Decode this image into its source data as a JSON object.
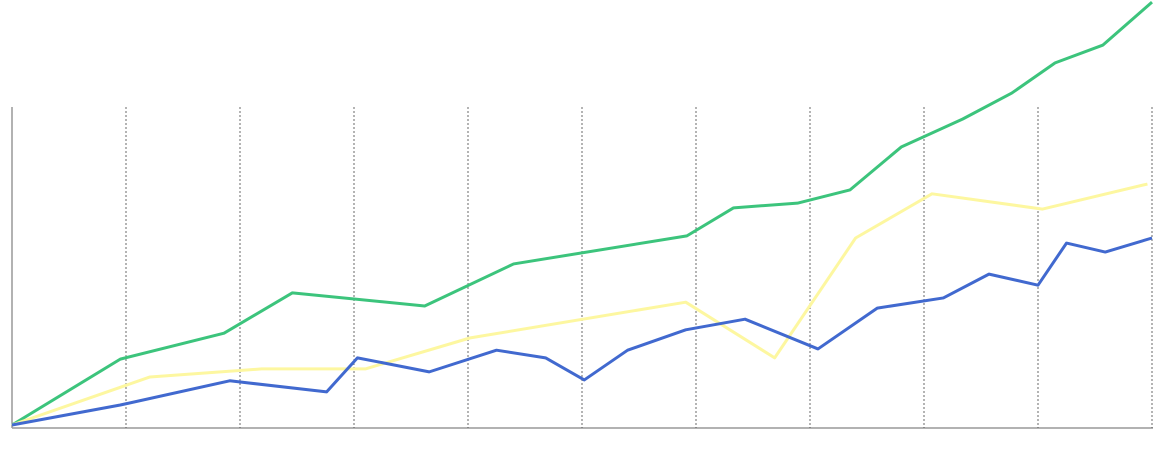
{
  "chart_data": {
    "type": "line",
    "xlim": [
      0,
      10
    ],
    "xticks": [
      0,
      1,
      2,
      3,
      4,
      5,
      6,
      7,
      8,
      9,
      10
    ],
    "ylim": [
      0,
      100
    ],
    "grid": true,
    "series": [
      {
        "color": "#3cc47c",
        "x": [
          0,
          0.95,
          1.86,
          2.46,
          3.62,
          4.4,
          5.92,
          6.33,
          6.89,
          7.35,
          7.8,
          8.34,
          8.77,
          9.15,
          9.57,
          10
        ],
        "values": [
          0,
          15.5,
          21.6,
          31.1,
          28,
          37.9,
          44.5,
          51.1,
          52.2,
          55.3,
          65.4,
          72,
          78.1,
          85.2,
          89.4,
          99.5
        ]
      },
      {
        "color": "#fdf7a0",
        "x": [
          0,
          1.21,
          2.19,
          3.1,
          4.02,
          5.91,
          6.69,
          7.4,
          8.07,
          9.04,
          9.96
        ],
        "values": [
          0,
          11.3,
          13.2,
          13.2,
          20.5,
          28.9,
          15.8,
          44,
          54.4,
          50.8,
          56.7
        ]
      },
      {
        "color": "#4169cf",
        "x": [
          0,
          0.95,
          1.91,
          2.76,
          3.03,
          3.66,
          4.25,
          4.68,
          5.02,
          5.4,
          5.91,
          6.43,
          7.07,
          7.59,
          8.17,
          8.57,
          9,
          9.25,
          9.59,
          10
        ],
        "values": [
          0,
          4.7,
          10.4,
          7.8,
          15.8,
          12.5,
          17.6,
          15.8,
          10.6,
          17.6,
          22.4,
          24.9,
          17.9,
          27.5,
          29.9,
          35.5,
          32.9,
          42.8,
          40.7,
          44
        ]
      }
    ]
  }
}
